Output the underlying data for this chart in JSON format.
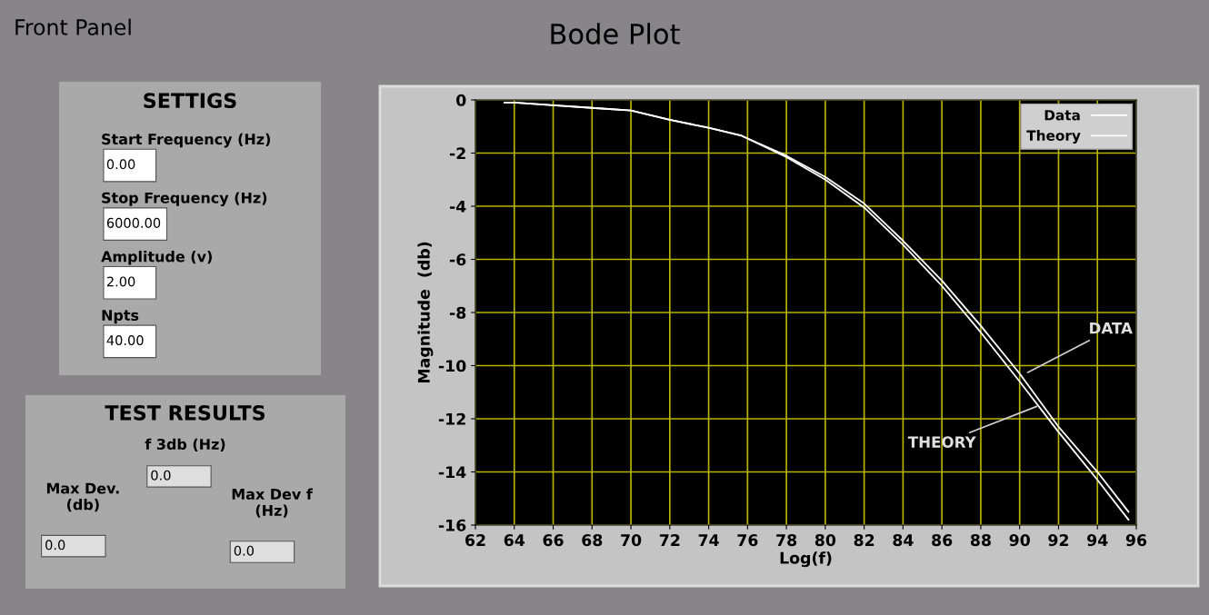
{
  "chart_data": [
    {
      "type": "other",
      "title": "Front Panel"
    },
    {
      "type": "other",
      "title": "SETTIGS",
      "annotations": [
        "Start Frequency (Hz)",
        "0.00",
        "Stop Frequency (Hz)",
        "6000.00",
        "Amplitude (v)",
        "2.00",
        "Npts",
        "40.00"
      ]
    },
    {
      "type": "other",
      "title": "TEST RESULTS",
      "annotations": [
        "f 3db (Hz)",
        "0.0",
        "Max Dev.\n(db)",
        "0.0",
        "Max Dev f\n(Hz)",
        "0.0"
      ]
    },
    {
      "type": "line",
      "title": "Bode Plot",
      "xlabel": "Log(f)",
      "ylabel": "Magnitude  (db)",
      "xlim": [
        62,
        96
      ],
      "xticks": [
        62,
        64,
        66,
        68,
        70,
        72,
        74,
        76,
        78,
        80,
        82,
        84,
        86,
        88,
        90,
        92,
        94,
        96
      ],
      "ylim": [
        -16,
        0
      ],
      "yticks": [
        0,
        -2,
        -4,
        -6,
        -8,
        -10,
        -12,
        -14,
        -16
      ],
      "grid": true,
      "legend": "top right",
      "series": [
        {
          "name": "Data",
          "color": "#ffffff",
          "x": [
            63.5,
            64,
            66,
            68,
            70,
            72,
            74,
            75.7,
            78,
            80,
            82,
            84,
            86,
            88,
            90,
            92,
            94,
            95.6
          ],
          "values": [
            -0.1,
            -0.1,
            -0.2,
            -0.3,
            -0.4,
            -0.75,
            -1.05,
            -1.35,
            -2.1,
            -2.9,
            -3.9,
            -5.3,
            -6.8,
            -8.5,
            -10.3,
            -12.3,
            -14.0,
            -15.5
          ]
        },
        {
          "name": "Theory",
          "color": "#ffffff",
          "x": [
            63.5,
            64,
            66,
            68,
            70,
            72,
            74,
            75.7,
            78,
            80,
            82,
            84,
            86,
            88,
            90,
            92,
            94,
            95.6
          ],
          "values": [
            -0.1,
            -0.1,
            -0.2,
            -0.3,
            -0.4,
            -0.75,
            -1.05,
            -1.35,
            -2.15,
            -3.0,
            -4.05,
            -5.45,
            -7.0,
            -8.75,
            -10.6,
            -12.5,
            -14.3,
            -15.8
          ]
        }
      ],
      "annotations": [
        {
          "text": "DATA",
          "x": 90.3,
          "y": -10.3
        },
        {
          "text": "THEORY",
          "x": 91.0,
          "y": -11.5
        }
      ]
    }
  ]
}
